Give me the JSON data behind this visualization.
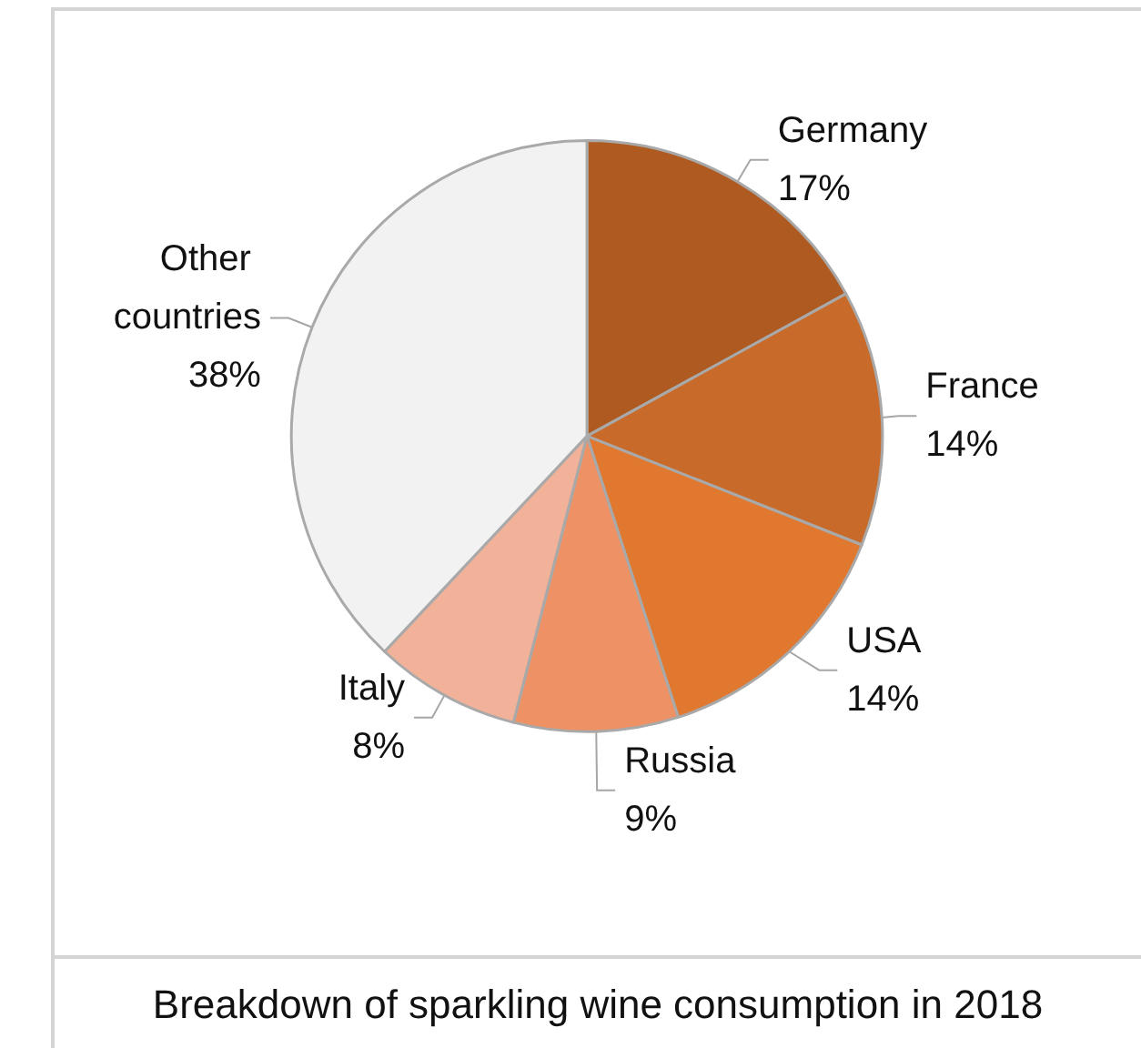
{
  "chart_data": {
    "type": "pie",
    "title": "Breakdown of sparkling wine consumption in 2018",
    "categories": [
      "Germany",
      "France",
      "USA",
      "Russia",
      "Italy",
      "Other countries"
    ],
    "values": [
      17,
      14,
      14,
      9,
      8,
      38
    ],
    "value_labels": [
      "17%",
      "14%",
      "14%",
      "9%",
      "8%",
      "38%"
    ],
    "colors": [
      "#ae5a21",
      "#c86a29",
      "#e07830",
      "#ee9265",
      "#f2b299",
      "#f2f2f2"
    ],
    "legend": false
  }
}
